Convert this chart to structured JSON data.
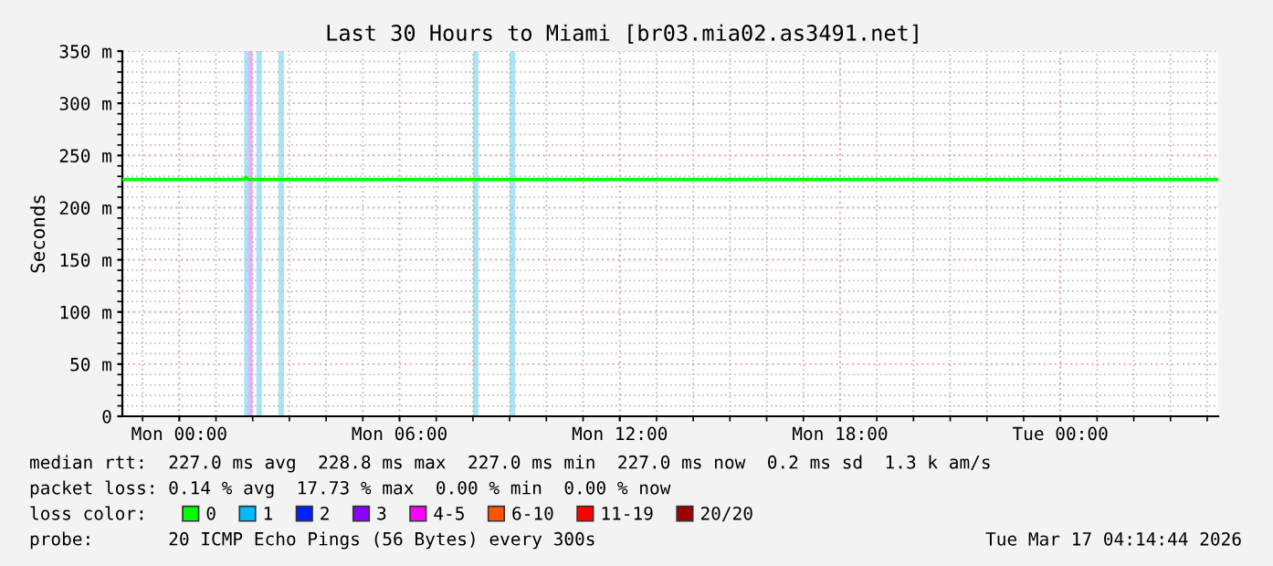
{
  "chart_data": {
    "type": "line",
    "title": "Last 30 Hours to Miami [br03.mia02.as3491.net]",
    "ylabel": "Seconds",
    "x": [
      "2026-03-15T22:27",
      "2026-03-16T01:45",
      "2026-03-16T01:49",
      "2026-03-16T01:54",
      "2026-03-17T04:18"
    ],
    "xlim": [
      "2026-03-15T22:27",
      "2026-03-17T04:18"
    ],
    "xticks": [
      {
        "value": "2026-03-16T00:00",
        "label": "Mon 00:00"
      },
      {
        "value": "2026-03-16T06:00",
        "label": "Mon 06:00"
      },
      {
        "value": "2026-03-16T12:00",
        "label": "Mon 12:00"
      },
      {
        "value": "2026-03-16T18:00",
        "label": "Mon 18:00"
      },
      {
        "value": "2026-03-17T00:00",
        "label": "Tue 00:00"
      }
    ],
    "ylim": [
      0,
      350
    ],
    "yticks": [
      0,
      {
        "value": 50,
        "label": "50 m"
      },
      {
        "value": 100,
        "label": "100 m"
      },
      {
        "value": 150,
        "label": "150 m"
      },
      {
        "value": 200,
        "label": "200 m"
      },
      {
        "value": 250,
        "label": "250 m"
      },
      {
        "value": 300,
        "label": "300 m"
      },
      {
        "value": 350,
        "label": "350 m"
      }
    ],
    "grid": true,
    "legend": "bottom",
    "legend_title": "loss color:",
    "series": [
      {
        "name": "0",
        "color": "#00ff00",
        "values": [
          227,
          227,
          229,
          227,
          227
        ]
      },
      {
        "name": "1",
        "color": "#00bbff",
        "values": [
          null,
          null,
          null,
          null,
          null
        ]
      },
      {
        "name": "2",
        "color": "#0022ff",
        "values": [
          null,
          null,
          null,
          null,
          null
        ]
      },
      {
        "name": "3",
        "color": "#8a00ff",
        "values": [
          null,
          null,
          null,
          null,
          null
        ]
      },
      {
        "name": "4-5",
        "color": "#ff00ff",
        "values": [
          null,
          null,
          null,
          null,
          null
        ]
      },
      {
        "name": "6-10",
        "color": "#ff5500",
        "values": [
          null,
          null,
          null,
          null,
          null
        ]
      },
      {
        "name": "11-19",
        "color": "#ff0000",
        "values": [
          null,
          null,
          null,
          null,
          null
        ]
      },
      {
        "name": "20/20",
        "color": "#a10000",
        "values": [
          null,
          null,
          null,
          null,
          null
        ]
      }
    ],
    "bands": [
      {
        "axis": "x",
        "from": "2026-03-16T01:46",
        "to": "2026-03-16T01:53",
        "color": "#a8e4f8"
      },
      {
        "axis": "x",
        "from": "2026-03-16T01:53",
        "to": "2026-03-16T02:00",
        "color": "#e8b0f8"
      },
      {
        "axis": "x",
        "from": "2026-03-16T02:06",
        "to": "2026-03-16T02:15",
        "color": "#a8e4f8"
      },
      {
        "axis": "x",
        "from": "2026-03-16T02:42",
        "to": "2026-03-16T02:51",
        "color": "#a8e4f8"
      },
      {
        "axis": "x",
        "from": "2026-03-16T08:00",
        "to": "2026-03-16T08:09",
        "color": "#a8e4f8"
      },
      {
        "axis": "x",
        "from": "2026-03-16T09:00",
        "to": "2026-03-16T09:09",
        "color": "#a8e4f8"
      }
    ],
    "annotations": [
      "median rtt:  227.0 ms avg  228.8 ms max  227.0 ms min  227.0 ms now  0.2 ms sd  1.3 k am/s",
      "packet loss: 0.14 % avg  17.73 % max  0.00 % min  0.00 % now",
      "probe:       20 ICMP Echo Pings (56 Bytes) every 300s",
      "Tue Mar 17 04:14:44 2026"
    ]
  }
}
